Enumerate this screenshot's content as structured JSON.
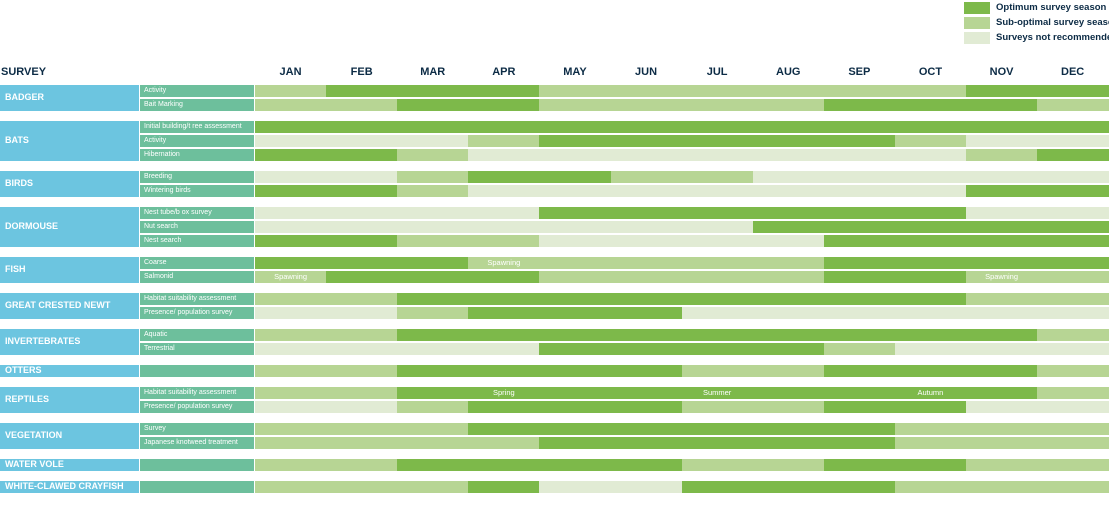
{
  "legend": [
    {
      "label": "Optimum survey season",
      "color": "#7db94a"
    },
    {
      "label": "Sub-optimal survey season",
      "color": "#b7d594"
    },
    {
      "label": "Surveys not recommended",
      "color": "#e1ebd4"
    }
  ],
  "chart_data": {
    "type": "table",
    "header_label": "SURVEY",
    "months": [
      "JAN",
      "FEB",
      "MAR",
      "APR",
      "MAY",
      "JUN",
      "JUL",
      "AUG",
      "SEP",
      "OCT",
      "NOV",
      "DEC"
    ],
    "status_key": {
      "O": "Optimum survey season",
      "S": "Sub-optimal survey season",
      "N": "Surveys not recommended"
    },
    "groups": [
      {
        "name": "BADGER",
        "rows": [
          {
            "label": "Activity",
            "months": "SOOOSSSSSSOO"
          },
          {
            "label": "Bait Marking",
            "months": "SSOOSSSSOOOS"
          }
        ]
      },
      {
        "name": "BATS",
        "rows": [
          {
            "label": "Initial building/t ree assessment",
            "months": "OOOOOOOOOOOO"
          },
          {
            "label": "Activity",
            "months": "NNNSOOOOOSNN"
          },
          {
            "label": "Hibernation",
            "months": "OOSNNNNNNNSO"
          }
        ]
      },
      {
        "name": "BIRDS",
        "rows": [
          {
            "label": "Breeding",
            "months": "NNSOOSSNNNNN"
          },
          {
            "label": "Wintering birds",
            "months": "OOSNNNNNNNOO"
          }
        ]
      },
      {
        "name": "DORMOUSE",
        "rows": [
          {
            "label": "Nest tube/b ox survey",
            "months": "NNNNOOOOOONN"
          },
          {
            "label": "Nut search",
            "months": "NNNNNNNOOOOO"
          },
          {
            "label": "Nest search",
            "months": "OOSSNNNNOOOO"
          }
        ]
      },
      {
        "name": "FISH",
        "rows": [
          {
            "label": "Coarse",
            "months": "OOOSSSSSOOOO"
          },
          {
            "label": "Salmonid",
            "months": "SOOOSSSSOOSS"
          }
        ]
      },
      {
        "name": "GREAT CRESTED NEWT",
        "rows": [
          {
            "label": "Habitat suitability assessment",
            "months": "SSOOOOOOOOSS"
          },
          {
            "label": "Presence/ population survey",
            "months": "NNSOOONNNNNN"
          }
        ]
      },
      {
        "name": "INVERTEBRATES",
        "rows": [
          {
            "label": "Aquatic",
            "months": "SSOOOOOOOOOS"
          },
          {
            "label": "Terrestrial",
            "months": "NNNNOOOOSNNN"
          }
        ]
      },
      {
        "name": "OTTERS",
        "rows": [
          {
            "label": "",
            "months": "SSOOOOSSOOOS"
          }
        ]
      },
      {
        "name": "REPTILES",
        "rows": [
          {
            "label": "Habitat suitability assessment",
            "months": "SSOOOOOOOOOS"
          },
          {
            "label": "Presence/ population survey",
            "months": "NNSOOOSSOONN"
          }
        ]
      },
      {
        "name": "VEGETATION",
        "rows": [
          {
            "label": "Survey",
            "months": "SSSOOOOOOSSS"
          },
          {
            "label": "Japanese knotweed treatment",
            "months": "SSSSOOOOOSSS"
          }
        ]
      },
      {
        "name": "WATER VOLE",
        "rows": [
          {
            "label": "",
            "months": "SSOOOOSSOOSS"
          }
        ]
      },
      {
        "name": "WHITE-CLAWED CRAYFISH",
        "rows": [
          {
            "label": "",
            "months": "SSSONNOOOSSS"
          }
        ]
      }
    ],
    "annotations": [
      {
        "group": 4,
        "row": 0,
        "month": 3,
        "text": "Spawning"
      },
      {
        "group": 4,
        "row": 1,
        "month": 0,
        "text": "Spawning"
      },
      {
        "group": 4,
        "row": 1,
        "month": 10,
        "text": "Spawning"
      },
      {
        "group": 8,
        "row": 0,
        "month": 3,
        "text": "Spring"
      },
      {
        "group": 8,
        "row": 0,
        "month": 6,
        "text": "Summer"
      },
      {
        "group": 8,
        "row": 0,
        "month": 9,
        "text": "Autumn"
      }
    ]
  }
}
